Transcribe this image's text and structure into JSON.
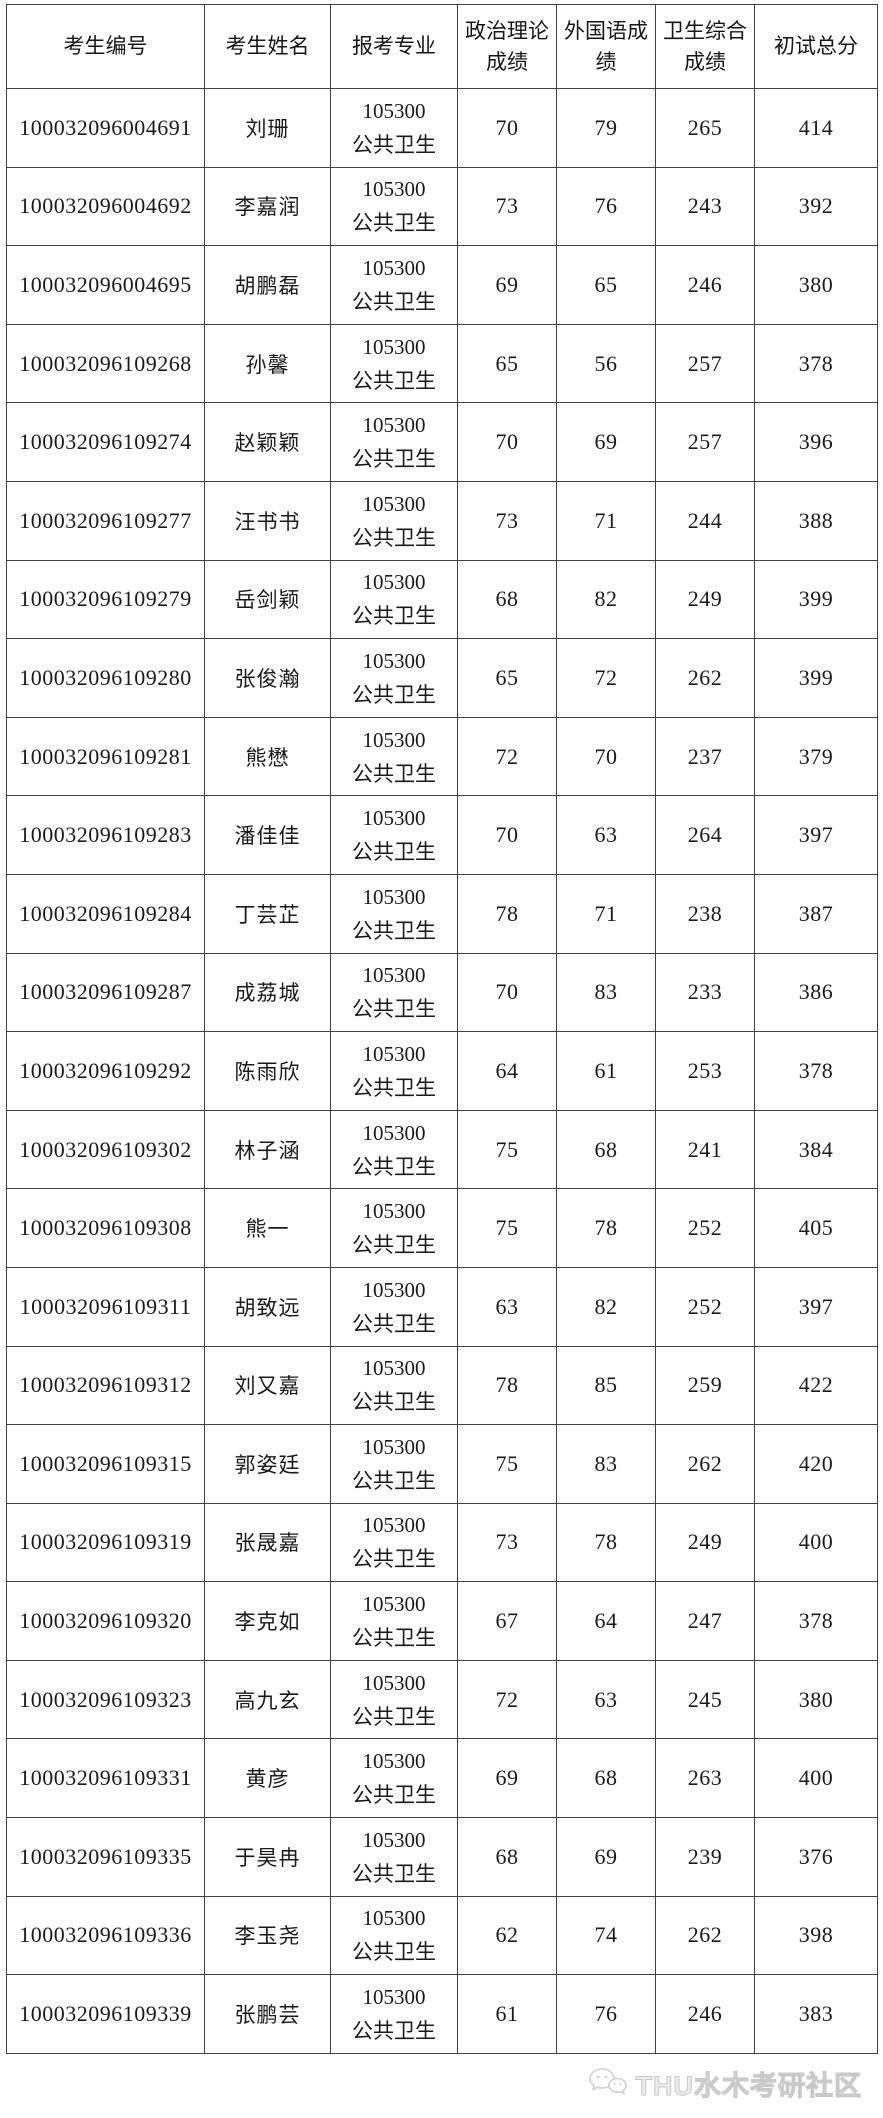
{
  "table": {
    "headers": [
      "考生编号",
      "考生姓名",
      "报考专业",
      "政治理论成绩",
      "外国语成绩",
      "卫生综合成绩",
      "初试总分"
    ],
    "major": {
      "code": "105300",
      "name": "公共卫生"
    },
    "rows": [
      {
        "id": "100032096004691",
        "name": "刘珊",
        "politics": "70",
        "foreign": "79",
        "health": "265",
        "total": "414"
      },
      {
        "id": "100032096004692",
        "name": "李嘉润",
        "politics": "73",
        "foreign": "76",
        "health": "243",
        "total": "392"
      },
      {
        "id": "100032096004695",
        "name": "胡鹏磊",
        "politics": "69",
        "foreign": "65",
        "health": "246",
        "total": "380"
      },
      {
        "id": "100032096109268",
        "name": "孙馨",
        "politics": "65",
        "foreign": "56",
        "health": "257",
        "total": "378"
      },
      {
        "id": "100032096109274",
        "name": "赵颖颖",
        "politics": "70",
        "foreign": "69",
        "health": "257",
        "total": "396"
      },
      {
        "id": "100032096109277",
        "name": "汪书书",
        "politics": "73",
        "foreign": "71",
        "health": "244",
        "total": "388"
      },
      {
        "id": "100032096109279",
        "name": "岳剑颖",
        "politics": "68",
        "foreign": "82",
        "health": "249",
        "total": "399"
      },
      {
        "id": "100032096109280",
        "name": "张俊瀚",
        "politics": "65",
        "foreign": "72",
        "health": "262",
        "total": "399"
      },
      {
        "id": "100032096109281",
        "name": "熊懋",
        "politics": "72",
        "foreign": "70",
        "health": "237",
        "total": "379"
      },
      {
        "id": "100032096109283",
        "name": "潘佳佳",
        "politics": "70",
        "foreign": "63",
        "health": "264",
        "total": "397"
      },
      {
        "id": "100032096109284",
        "name": "丁芸芷",
        "politics": "78",
        "foreign": "71",
        "health": "238",
        "total": "387"
      },
      {
        "id": "100032096109287",
        "name": "成荔城",
        "politics": "70",
        "foreign": "83",
        "health": "233",
        "total": "386"
      },
      {
        "id": "100032096109292",
        "name": "陈雨欣",
        "politics": "64",
        "foreign": "61",
        "health": "253",
        "total": "378"
      },
      {
        "id": "100032096109302",
        "name": "林子涵",
        "politics": "75",
        "foreign": "68",
        "health": "241",
        "total": "384"
      },
      {
        "id": "100032096109308",
        "name": "熊一",
        "politics": "75",
        "foreign": "78",
        "health": "252",
        "total": "405"
      },
      {
        "id": "100032096109311",
        "name": "胡致远",
        "politics": "63",
        "foreign": "82",
        "health": "252",
        "total": "397"
      },
      {
        "id": "100032096109312",
        "name": "刘又嘉",
        "politics": "78",
        "foreign": "85",
        "health": "259",
        "total": "422"
      },
      {
        "id": "100032096109315",
        "name": "郭姿廷",
        "politics": "75",
        "foreign": "83",
        "health": "262",
        "total": "420"
      },
      {
        "id": "100032096109319",
        "name": "张晟嘉",
        "politics": "73",
        "foreign": "78",
        "health": "249",
        "total": "400"
      },
      {
        "id": "100032096109320",
        "name": "李克如",
        "politics": "67",
        "foreign": "64",
        "health": "247",
        "total": "378"
      },
      {
        "id": "100032096109323",
        "name": "高九玄",
        "politics": "72",
        "foreign": "63",
        "health": "245",
        "total": "380"
      },
      {
        "id": "100032096109331",
        "name": "黄彦",
        "politics": "69",
        "foreign": "68",
        "health": "263",
        "total": "400"
      },
      {
        "id": "100032096109335",
        "name": "于昊冉",
        "politics": "68",
        "foreign": "69",
        "health": "239",
        "total": "376"
      },
      {
        "id": "100032096109336",
        "name": "李玉尧",
        "politics": "62",
        "foreign": "74",
        "health": "262",
        "total": "398"
      },
      {
        "id": "100032096109339",
        "name": "张鹏芸",
        "politics": "61",
        "foreign": "76",
        "health": "246",
        "total": "383"
      }
    ]
  },
  "footer": {
    "watermark": "THU水木考研社区"
  },
  "colors": {
    "border": "#404040",
    "text": "#1a1a1a",
    "watermark": "#cccccc"
  }
}
